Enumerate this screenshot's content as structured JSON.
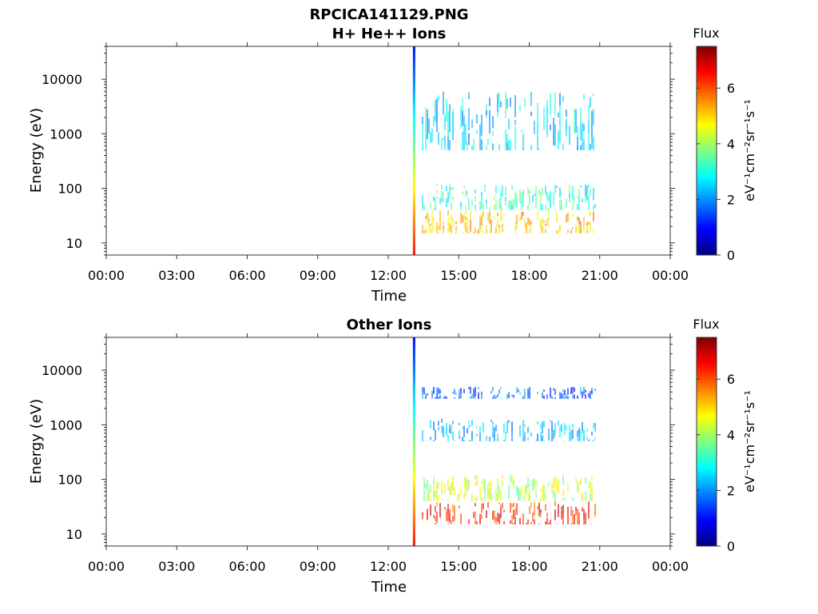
{
  "figure": {
    "title": "RPCICA141129.PNG"
  },
  "colorscale": [
    "#00007f",
    "#0000ff",
    "#007fff",
    "#00ffff",
    "#7fff7f",
    "#ffff00",
    "#ff7f00",
    "#ff0000",
    "#7f0000"
  ],
  "chart_data": [
    {
      "type": "heatmap",
      "title": "H+ He++ Ions",
      "xlabel": "Time",
      "ylabel": "Energy (eV)",
      "xticks": [
        "00:00",
        "03:00",
        "06:00",
        "09:00",
        "12:00",
        "15:00",
        "18:00",
        "21:00",
        "00:00"
      ],
      "xlim_hours": [
        0,
        24
      ],
      "yscale": "log",
      "ylim": [
        6,
        40000
      ],
      "yticks": [
        10,
        100,
        1000,
        10000
      ],
      "yticklabels": [
        "10",
        "100",
        "1000",
        "10000"
      ],
      "colorbar": {
        "title": "Flux",
        "unit_label": "eV⁻¹cm⁻²sr⁻¹s⁻¹",
        "range": [
          0,
          7.5
        ],
        "ticks": [
          0,
          2,
          4,
          6
        ],
        "ticklabels": [
          "0",
          "2",
          "4",
          "6"
        ]
      },
      "data_start_hour": 13.1,
      "data_end_hour": 20.85,
      "bands": [
        {
          "e_low": 15,
          "e_high": 40,
          "flux": 5.0
        },
        {
          "e_low": 40,
          "e_high": 120,
          "flux": 3.2
        },
        {
          "e_low": 500,
          "e_high": 6000,
          "flux": 2.5
        }
      ],
      "onset_spike": {
        "hour": 13.1,
        "flux_low_energy": 6.5,
        "flux_high_energy": 1.0
      }
    },
    {
      "type": "heatmap",
      "title": "Other Ions",
      "xlabel": "Time",
      "ylabel": "Energy (eV)",
      "xticks": [
        "00:00",
        "03:00",
        "06:00",
        "09:00",
        "12:00",
        "15:00",
        "18:00",
        "21:00",
        "00:00"
      ],
      "xlim_hours": [
        0,
        24
      ],
      "yscale": "log",
      "ylim": [
        6,
        40000
      ],
      "yticks": [
        10,
        100,
        1000,
        10000
      ],
      "yticklabels": [
        "10",
        "100",
        "1000",
        "10000"
      ],
      "colorbar": {
        "title": "Flux",
        "unit_label": "eV⁻¹cm⁻²sr⁻¹s⁻¹",
        "range": [
          0,
          7.5
        ],
        "ticks": [
          0,
          2,
          4,
          6
        ],
        "ticklabels": [
          "0",
          "2",
          "4",
          "6"
        ]
      },
      "data_start_hour": 13.1,
      "data_end_hour": 20.85,
      "bands": [
        {
          "e_low": 15,
          "e_high": 40,
          "flux": 6.2
        },
        {
          "e_low": 40,
          "e_high": 120,
          "flux": 4.2
        },
        {
          "e_low": 500,
          "e_high": 1300,
          "flux": 2.3
        },
        {
          "e_low": 3000,
          "e_high": 5000,
          "flux": 1.6
        }
      ],
      "onset_spike": {
        "hour": 13.1,
        "flux_low_energy": 6.5,
        "flux_high_energy": 1.0
      }
    }
  ]
}
